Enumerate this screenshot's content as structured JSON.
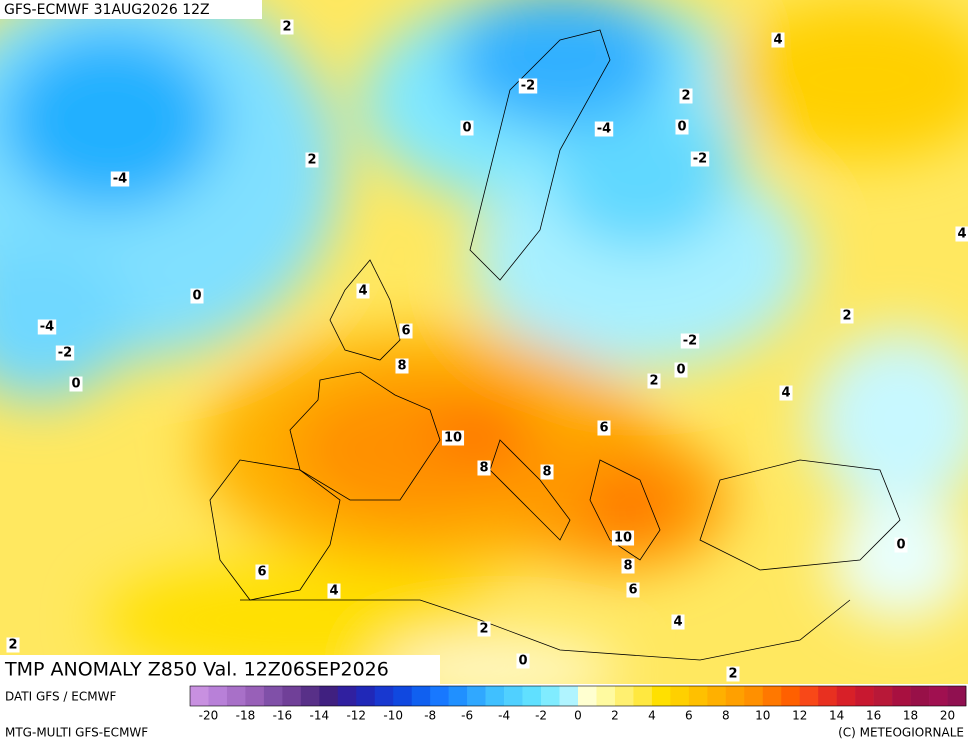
{
  "header": {
    "title": "GFS-ECMWF 31AUG2026 12Z"
  },
  "map": {
    "title": "TMP ANOMALY Z850 Val. 12Z06SEP2026",
    "contour_labels": [
      2,
      4,
      2,
      -2,
      0,
      -4,
      0,
      -2,
      -4,
      2,
      4,
      0,
      4,
      2,
      -4,
      -2,
      6,
      -2,
      0,
      8,
      2,
      0,
      4,
      10,
      6,
      8,
      8,
      10,
      0,
      6,
      8,
      4,
      6,
      4,
      2,
      2,
      0,
      2
    ]
  },
  "footer": {
    "source": "DATI GFS / ECMWF",
    "model": "MTG-MULTI GFS-ECMWF",
    "copyright": "(C) METEOGIORNALE"
  },
  "colorbar": {
    "range": [
      -21,
      21
    ],
    "ticks": [
      -20,
      -18,
      -16,
      -14,
      -12,
      -10,
      -8,
      -6,
      -4,
      -2,
      0,
      2,
      4,
      6,
      8,
      10,
      12,
      14,
      16,
      18,
      20
    ],
    "colors": [
      "#c890e0",
      "#b880d8",
      "#a870c8",
      "#9860b8",
      "#8050a8",
      "#704098",
      "#583088",
      "#402080",
      "#3020a0",
      "#2028b8",
      "#1838d0",
      "#1048e0",
      "#1060f0",
      "#1878ff",
      "#2090ff",
      "#30a8ff",
      "#40c0ff",
      "#50d0ff",
      "#60e0ff",
      "#80ecff",
      "#b0f4ff",
      "#ffffd0",
      "#fffaa0",
      "#fff070",
      "#ffe840",
      "#ffe000",
      "#ffd000",
      "#ffc000",
      "#ffb000",
      "#ffa000",
      "#ff9000",
      "#ff7800",
      "#ff6000",
      "#f84818",
      "#e83020",
      "#d82028",
      "#c81830",
      "#b81838",
      "#a81040",
      "#981048",
      "#a01050",
      "#901050"
    ]
  }
}
